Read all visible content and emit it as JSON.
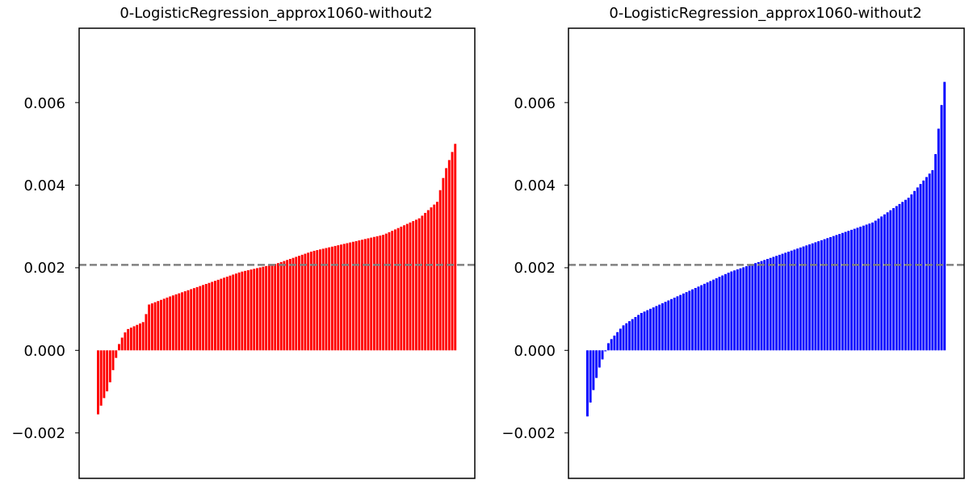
{
  "chart_data": [
    {
      "type": "bar",
      "title": "0-LogisticRegression_approx1060-without2",
      "xlabel": "",
      "ylabel": "",
      "ylim": [
        -0.0031,
        0.0078
      ],
      "yticks": [
        -0.002,
        0.0,
        0.002,
        0.004,
        0.006
      ],
      "ytick_labels": [
        "−0.002",
        "0.000",
        "0.002",
        "0.004",
        "0.006"
      ],
      "xticks": "none",
      "bar_color": "#ff0000",
      "mean_line": {
        "value": 0.00207,
        "color": "#808080",
        "style": "dashed"
      },
      "sorted": "ascending",
      "profile": [
        [
          0,
          -0.00155
        ],
        [
          0.012,
          -0.00125
        ],
        [
          0.03,
          -0.0009
        ],
        [
          0.05,
          -0.0002
        ],
        [
          0.06,
          0.0002
        ],
        [
          0.08,
          0.0005
        ],
        [
          0.13,
          0.0007
        ],
        [
          0.14,
          0.0011
        ],
        [
          0.2,
          0.0013
        ],
        [
          0.3,
          0.0016
        ],
        [
          0.4,
          0.0019
        ],
        [
          0.5,
          0.0021
        ],
        [
          0.6,
          0.0024
        ],
        [
          0.7,
          0.0026
        ],
        [
          0.8,
          0.0028
        ],
        [
          0.9,
          0.0032
        ],
        [
          0.95,
          0.0036
        ],
        [
          0.97,
          0.0043
        ],
        [
          1.0,
          0.005
        ]
      ]
    },
    {
      "type": "bar",
      "title": "0-LogisticRegression_approx1060-without2",
      "xlabel": "",
      "ylabel": "",
      "ylim": [
        -0.0031,
        0.0078
      ],
      "yticks": [
        -0.002,
        0.0,
        0.002,
        0.004,
        0.006
      ],
      "ytick_labels": [
        "−0.002",
        "0.000",
        "0.002",
        "0.004",
        "0.006"
      ],
      "xticks": "none",
      "bar_color": "#0000ff",
      "mean_line": {
        "value": 0.00207,
        "color": "#808080",
        "style": "dashed"
      },
      "sorted": "ascending",
      "profile": [
        [
          0,
          -0.0016
        ],
        [
          0.01,
          -0.0012
        ],
        [
          0.03,
          -0.0005
        ],
        [
          0.06,
          0.0002
        ],
        [
          0.1,
          0.0006
        ],
        [
          0.15,
          0.0009
        ],
        [
          0.2,
          0.0011
        ],
        [
          0.3,
          0.0015
        ],
        [
          0.4,
          0.0019
        ],
        [
          0.5,
          0.0022
        ],
        [
          0.6,
          0.0025
        ],
        [
          0.7,
          0.0028
        ],
        [
          0.8,
          0.0031
        ],
        [
          0.9,
          0.0037
        ],
        [
          0.97,
          0.0044
        ],
        [
          0.985,
          0.0055
        ],
        [
          1.0,
          0.0065
        ]
      ]
    }
  ]
}
